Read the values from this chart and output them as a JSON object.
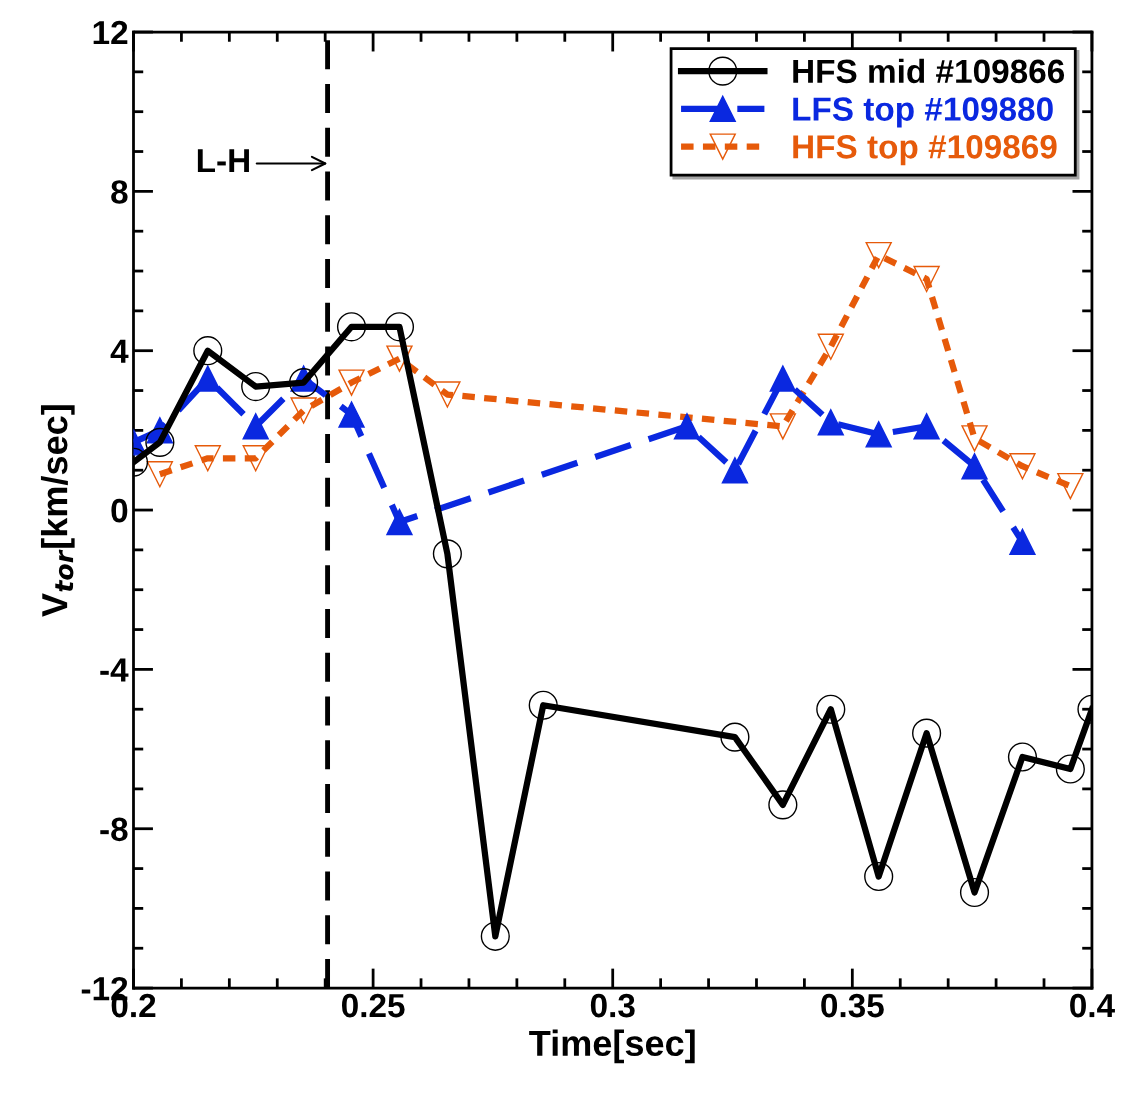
{
  "chart_data": {
    "type": "line",
    "xlabel": "Time[sec]",
    "ylabel": "V$_{tor}$[km/sec]",
    "xlim": [
      0.2,
      0.4
    ],
    "xticks": [
      0.2,
      0.25,
      0.3,
      0.35,
      0.4
    ],
    "ylim": [
      -12,
      12
    ],
    "yticks": [
      -12,
      -8,
      -4,
      0,
      4,
      8,
      12
    ],
    "grid": false,
    "legend": "top right",
    "ref_lines": [
      {
        "axis": "x",
        "value": 0.2405,
        "label": null,
        "color": "#000000",
        "line_style": "dashed"
      }
    ],
    "annotations": [
      {
        "text": "L-H",
        "x": 0.2405,
        "y": 8.7
      }
    ],
    "series": [
      {
        "name": "HFS mid #109866",
        "color": "#000000",
        "marker": "circle",
        "line_style": "solid",
        "x": [
          0.2,
          0.2055,
          0.2155,
          0.2255,
          0.2355,
          0.2455,
          0.2555,
          0.2655,
          0.2755,
          0.2855,
          0.3255,
          0.3355,
          0.3455,
          0.3555,
          0.3655,
          0.3755,
          0.3855,
          0.3955,
          0.4
        ],
        "values": [
          1.2,
          1.7,
          4.0,
          3.1,
          3.2,
          4.6,
          4.6,
          -1.1,
          -10.7,
          -4.9,
          -5.7,
          -7.4,
          -5.0,
          -9.2,
          -5.6,
          -9.6,
          -6.2,
          -6.5,
          -5.0
        ]
      },
      {
        "name": "LFS top #109880",
        "color": "#0a28e0",
        "marker": "triangle",
        "line_style": "dashed",
        "x": [
          0.2,
          0.2055,
          0.2155,
          0.2255,
          0.2355,
          0.2455,
          0.2555,
          0.3155,
          0.3255,
          0.3355,
          0.3455,
          0.3555,
          0.3655,
          0.3755,
          0.3855
        ],
        "values": [
          1.7,
          2.0,
          3.3,
          2.1,
          3.3,
          2.4,
          -0.3,
          2.1,
          1.0,
          3.3,
          2.2,
          1.9,
          2.1,
          1.1,
          -0.8
        ]
      },
      {
        "name": "HFS top #109869",
        "color": "#e65a0a",
        "marker": "triangle_down",
        "line_style": "dotted",
        "x": [
          0.2055,
          0.2155,
          0.2255,
          0.2355,
          0.2455,
          0.2555,
          0.2655,
          0.3355,
          0.3455,
          0.3555,
          0.3655,
          0.3755,
          0.3855,
          0.3955
        ],
        "values": [
          0.9,
          1.3,
          1.3,
          2.5,
          3.2,
          3.8,
          2.9,
          2.1,
          4.1,
          6.4,
          5.8,
          1.8,
          1.1,
          0.6
        ]
      }
    ]
  }
}
